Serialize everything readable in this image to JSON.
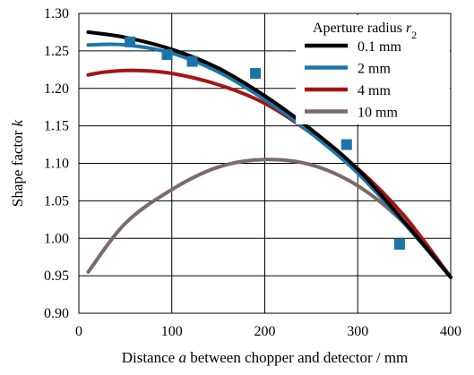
{
  "chart_data": {
    "type": "line",
    "xlabel": "Distance a between chopper and detector / mm",
    "xlabel_parts": [
      {
        "text": "Distance ",
        "italic": false
      },
      {
        "text": "a",
        "italic": true
      },
      {
        "text": " between chopper and detector / mm",
        "italic": false
      }
    ],
    "ylabel": "Shape factor k",
    "ylabel_parts": [
      {
        "text": "Shape factor ",
        "italic": false
      },
      {
        "text": "k",
        "italic": true
      }
    ],
    "xlim": [
      0,
      400
    ],
    "ylim": [
      0.9,
      1.3
    ],
    "xticks": [
      0,
      100,
      200,
      300,
      400
    ],
    "yticks": [
      0.9,
      0.95,
      1.0,
      1.05,
      1.1,
      1.15,
      1.2,
      1.25,
      1.3
    ],
    "ytick_labels": [
      "0.90",
      "0.95",
      "1.00",
      "1.05",
      "1.10",
      "1.15",
      "1.20",
      "1.25",
      "1.30"
    ],
    "grid": true,
    "legend": {
      "title": "Aperture radius r2",
      "title_parts": [
        {
          "text": "Aperture radius ",
          "italic": false
        },
        {
          "text": "r",
          "italic": true
        },
        {
          "text": "2",
          "italic": false,
          "sub": true
        }
      ],
      "placement": "top-right"
    },
    "series": [
      {
        "name": "0.1 mm",
        "color": "#000000",
        "x": [
          10,
          50,
          100,
          150,
          200,
          250,
          300,
          350,
          400
        ],
        "y": [
          1.275,
          1.268,
          1.252,
          1.227,
          1.19,
          1.145,
          1.092,
          1.022,
          0.948
        ]
      },
      {
        "name": "2 mm",
        "color": "#1b75a8",
        "x": [
          10,
          50,
          100,
          150,
          200,
          250,
          300,
          350,
          400
        ],
        "y": [
          1.258,
          1.258,
          1.247,
          1.222,
          1.185,
          1.14,
          1.087,
          1.02,
          0.948
        ]
      },
      {
        "name": "4 mm",
        "color": "#a31515",
        "x": [
          10,
          30,
          60,
          100,
          150,
          200,
          250,
          300,
          350,
          400
        ],
        "y": [
          1.218,
          1.222,
          1.224,
          1.22,
          1.205,
          1.18,
          1.14,
          1.093,
          1.03,
          0.948
        ]
      },
      {
        "name": "10 mm",
        "color": "#7a6a6a",
        "x": [
          10,
          50,
          100,
          150,
          200,
          250,
          300,
          350,
          400
        ],
        "y": [
          0.955,
          1.02,
          1.065,
          1.095,
          1.105,
          1.098,
          1.07,
          1.02,
          0.948
        ]
      }
    ],
    "markers": {
      "shape": "square",
      "color": "#1b75a8",
      "x": [
        55,
        95,
        122,
        190,
        288,
        345
      ],
      "y": [
        1.262,
        1.245,
        1.236,
        1.22,
        1.125,
        0.992
      ]
    }
  }
}
